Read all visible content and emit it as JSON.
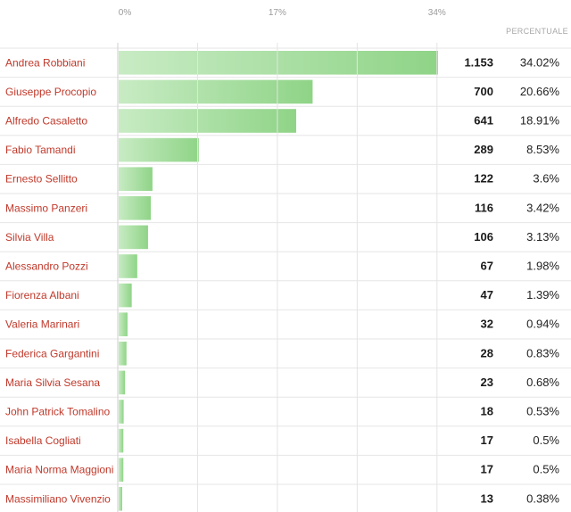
{
  "chart_data": {
    "type": "bar",
    "orientation": "horizontal",
    "x_ticks": [
      "0%",
      "17%",
      "34%"
    ],
    "x_tick_values": [
      0,
      17,
      34
    ],
    "xlim": [
      0,
      34.02
    ],
    "grid": true,
    "percent_header": "PERCENTUALE",
    "categories": [
      "Andrea Robbiani",
      "Giuseppe Procopio",
      "Alfredo Casaletto",
      "Fabio Tamandi",
      "Ernesto Sellitto",
      "Massimo Panzeri",
      "Silvia Villa",
      "Alessandro Pozzi",
      "Fiorenza Albani",
      "Valeria Marinari",
      "Federica Gargantini",
      "Maria Silvia Sesana",
      "John Patrick Tomalino",
      "Isabella Cogliati",
      "Maria Norma Maggioni",
      "Massimiliano Vivenzio"
    ],
    "values": [
      34.02,
      20.66,
      18.91,
      8.53,
      3.6,
      3.42,
      3.13,
      1.98,
      1.39,
      0.94,
      0.83,
      0.68,
      0.53,
      0.5,
      0.5,
      0.38
    ],
    "value_labels": [
      "1.153",
      "700",
      "641",
      "289",
      "122",
      "116",
      "106",
      "67",
      "47",
      "32",
      "28",
      "23",
      "18",
      "17",
      "17",
      "13"
    ],
    "percent_labels": [
      "34.02%",
      "20.66%",
      "18.91%",
      "8.53%",
      "3.6%",
      "3.42%",
      "3.13%",
      "1.98%",
      "1.39%",
      "0.94%",
      "0.83%",
      "0.68%",
      "0.53%",
      "0.5%",
      "0.5%",
      "0.38%"
    ]
  },
  "colors": {
    "label": "#c0392b",
    "bar_light": "#c8ebc4",
    "bar_dark": "#8fd487",
    "grid": "#e4e4e4",
    "row_divider": "#e6e6e6"
  }
}
